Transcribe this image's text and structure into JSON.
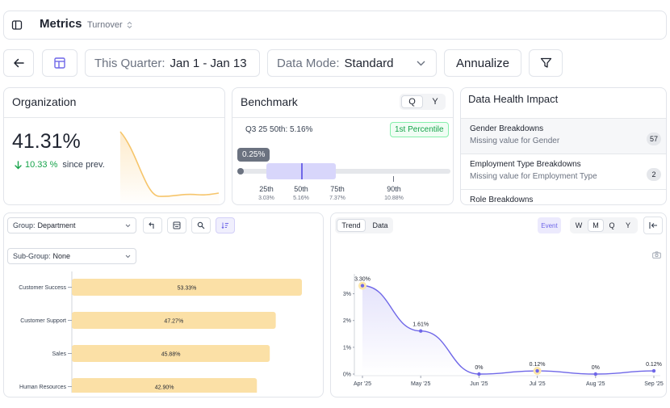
{
  "header": {
    "title": "Metrics",
    "subtitle": "Turnover"
  },
  "toolbar": {
    "period_label": "This Quarter:",
    "period_value": "Jan 1 - Jan 13",
    "mode_label": "Data Mode:",
    "mode_value": "Standard",
    "annualize_label": "Annualize"
  },
  "organization": {
    "title": "Organization",
    "value": "41.31%",
    "change": "10.33 %",
    "change_suffix": "since prev."
  },
  "benchmark": {
    "title": "Benchmark",
    "toggle_q": "Q",
    "toggle_y": "Y",
    "summary": "Q3 25 50th: 5.16%",
    "percentile_badge": "1st Percentile",
    "marker_value": "0.25%",
    "ticks": [
      {
        "label": "25th",
        "value": "3.03%"
      },
      {
        "label": "50th",
        "value": "5.16%"
      },
      {
        "label": "75th",
        "value": "7.37%"
      },
      {
        "label": "90th",
        "value": "10.88%"
      }
    ]
  },
  "data_health": {
    "title": "Data Health Impact",
    "items": [
      {
        "title": "Gender Breakdowns",
        "desc": "Missing value for Gender",
        "count": "57"
      },
      {
        "title": "Employment Type Breakdowns",
        "desc": "Missing value for Employment Type",
        "count": "2"
      },
      {
        "title": "Role Breakdowns",
        "desc": "",
        "count": ""
      }
    ]
  },
  "group_panel": {
    "group_label": "Group:",
    "group_value": "Department",
    "subgroup_label": "Sub-Group:",
    "subgroup_value": "None"
  },
  "trend_panel": {
    "tab_trend": "Trend",
    "tab_data": "Data",
    "event_label": "Event",
    "granularity": [
      "W",
      "M",
      "Q",
      "Y"
    ]
  },
  "colors": {
    "accent_purple": "#6f67e8",
    "bar_fill": "#fbe0a6",
    "positive_green": "#16a34a"
  },
  "chart_data": [
    {
      "type": "bar",
      "orientation": "horizontal",
      "categories": [
        "Customer Success",
        "Customer Support",
        "Sales",
        "Human Resources"
      ],
      "values": [
        53.33,
        47.27,
        45.88,
        42.9
      ],
      "labels": [
        "53.33%",
        "47.27%",
        "45.88%",
        "42.90%"
      ],
      "xlim": [
        0,
        56
      ]
    },
    {
      "type": "line",
      "x": [
        "Apr '25",
        "May '25",
        "Jun '25",
        "Jul '25",
        "Aug '25",
        "Sep '25"
      ],
      "values": [
        3.3,
        1.61,
        0,
        0.12,
        0,
        0.12
      ],
      "labels": [
        "3.30%",
        "1.61%",
        "0%",
        "0.12%",
        "0%",
        "0.12%"
      ],
      "yticks": [
        "0%",
        "1%",
        "2%",
        "3%"
      ],
      "ylim": [
        0,
        3.5
      ],
      "event_points": [
        "Apr '25",
        "Jul '25"
      ],
      "grid": false
    }
  ]
}
